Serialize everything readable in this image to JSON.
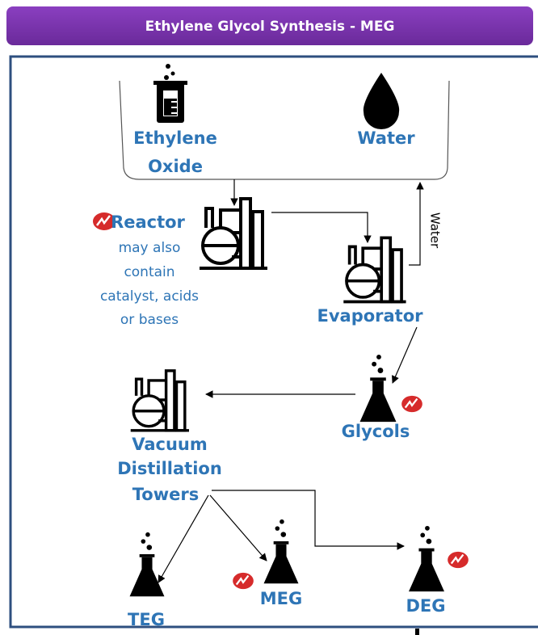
{
  "header": {
    "title": "Ethylene Glycol Synthesis - MEG"
  },
  "nodes": [
    {
      "lines": [
        "Ethylene",
        "Oxide"
      ]
    },
    {
      "lines": [
        "Water"
      ]
    },
    {
      "lines": [
        "Reactor"
      ],
      "note": [
        "may also",
        "contain",
        "catalyst, acids",
        "or bases"
      ]
    },
    {
      "lines": [
        "Evaporator"
      ]
    },
    {
      "lines": [
        "Glycols"
      ]
    },
    {
      "lines": [
        "Vacuum",
        "Distillation",
        "Towers"
      ]
    },
    {
      "lines": [
        "TEG"
      ]
    },
    {
      "lines": [
        "MEG"
      ]
    },
    {
      "lines": [
        "DEG"
      ]
    }
  ],
  "edges": [
    {
      "label": "Water"
    }
  ]
}
